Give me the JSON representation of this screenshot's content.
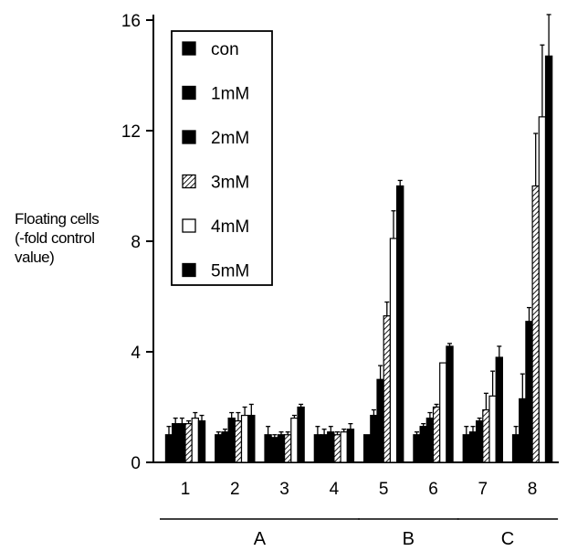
{
  "chart_data": {
    "type": "bar",
    "title": "",
    "ylabel_lines": [
      "Floating cells",
      "(-fold control",
      "value)"
    ],
    "ylim": [
      0,
      16
    ],
    "yticks": [
      0,
      4,
      8,
      12,
      16
    ],
    "categories": [
      "1",
      "2",
      "3",
      "4",
      "5",
      "6",
      "7",
      "8"
    ],
    "groups": [
      {
        "label": "A",
        "categories": [
          "1",
          "2",
          "3",
          "4"
        ]
      },
      {
        "label": "B",
        "categories": [
          "5",
          "6"
        ]
      },
      {
        "label": "C",
        "categories": [
          "7",
          "8"
        ]
      }
    ],
    "legend": {
      "position": "top-left"
    },
    "series": [
      {
        "name": "con",
        "fill": "black",
        "values": [
          1.0,
          1.0,
          1.0,
          1.0,
          1.0,
          1.0,
          1.0,
          1.0
        ],
        "errors": [
          0.3,
          0.1,
          0.3,
          0.3,
          0.0,
          0.1,
          0.3,
          0.3
        ]
      },
      {
        "name": "1mM",
        "fill": "black",
        "values": [
          1.4,
          1.1,
          0.9,
          1.0,
          1.7,
          1.3,
          1.1,
          2.3
        ],
        "errors": [
          0.2,
          0.1,
          0.1,
          0.2,
          0.2,
          0.1,
          0.2,
          0.9
        ]
      },
      {
        "name": "2mM",
        "fill": "black",
        "values": [
          1.4,
          1.6,
          1.0,
          1.1,
          3.0,
          1.6,
          1.5,
          5.1
        ],
        "errors": [
          0.2,
          0.2,
          0.1,
          0.2,
          0.5,
          0.2,
          0.1,
          0.5
        ]
      },
      {
        "name": "3mM",
        "fill": "hatched",
        "values": [
          1.4,
          1.5,
          1.0,
          1.0,
          5.3,
          2.0,
          1.9,
          10.0
        ],
        "errors": [
          0.1,
          0.3,
          0.1,
          0.1,
          0.5,
          0.1,
          0.6,
          1.9
        ]
      },
      {
        "name": "4mM",
        "fill": "white",
        "values": [
          1.6,
          1.7,
          1.6,
          1.1,
          8.1,
          3.6,
          2.4,
          12.5
        ],
        "errors": [
          0.2,
          0.3,
          0.1,
          0.1,
          1.0,
          0.0,
          0.9,
          2.6
        ]
      },
      {
        "name": "5mM",
        "fill": "black",
        "values": [
          1.5,
          1.7,
          2.0,
          1.2,
          10.0,
          4.2,
          3.8,
          14.7
        ],
        "errors": [
          0.2,
          0.4,
          0.1,
          0.2,
          0.2,
          0.1,
          0.4,
          1.5
        ]
      }
    ]
  }
}
